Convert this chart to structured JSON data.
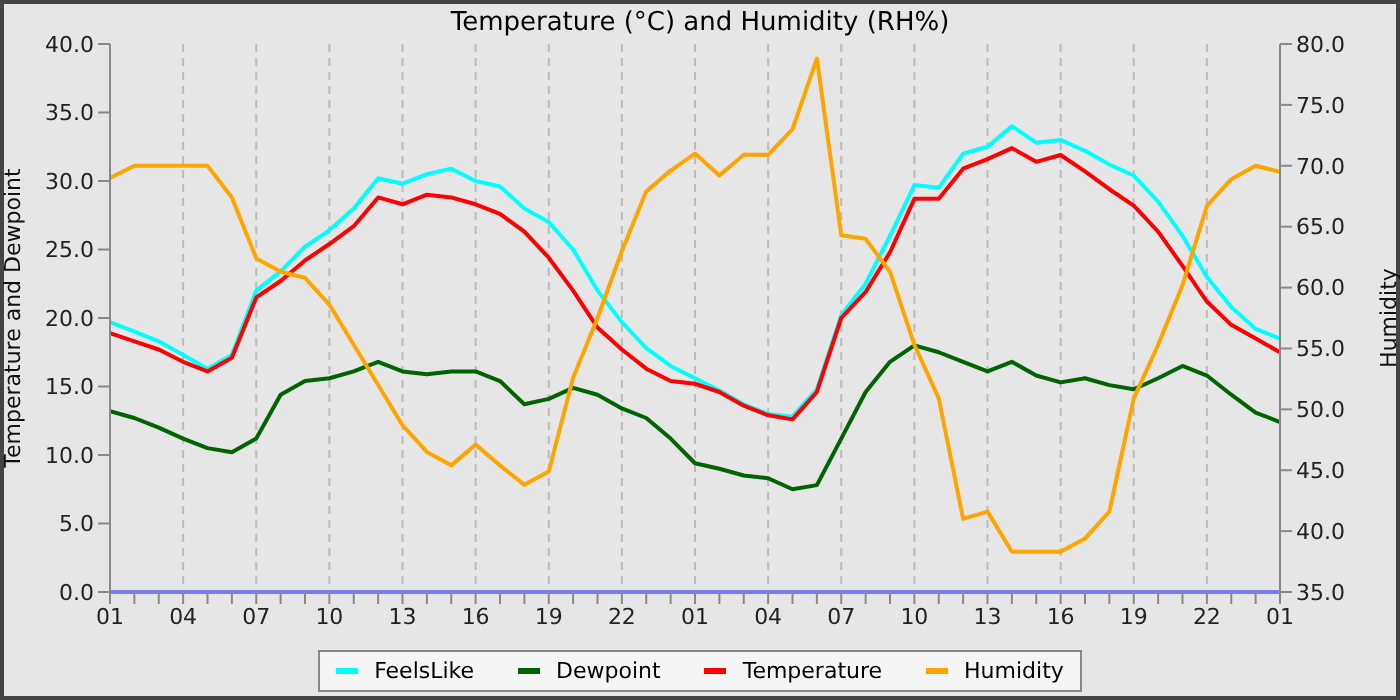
{
  "chart_data": {
    "type": "line",
    "title": "Temperature (°C) and Humidity (RH%)",
    "ylabel": "Temperature and Dewpoint",
    "y2label": "Humidity",
    "categories": [
      "01",
      null,
      null,
      "04",
      null,
      null,
      "07",
      null,
      null,
      "10",
      null,
      null,
      "13",
      null,
      null,
      "16",
      null,
      null,
      "19",
      null,
      null,
      "22",
      null,
      null,
      "01",
      null,
      null,
      "04",
      null,
      null,
      "07",
      null,
      null,
      "10",
      null,
      null,
      "13",
      null,
      null,
      "16",
      null,
      null,
      "19",
      null,
      null,
      "22",
      null,
      null,
      "01"
    ],
    "series": [
      {
        "name": "FeelsLike",
        "color": "#00ffff",
        "values": [
          19.7,
          19.0,
          18.3,
          17.3,
          16.3,
          17.3,
          22.0,
          23.4,
          25.2,
          26.4,
          28.0,
          30.2,
          29.8,
          30.5,
          30.9,
          30.0,
          29.6,
          28.0,
          27.0,
          25.0,
          22.0,
          19.7,
          17.8,
          16.5,
          15.6,
          14.7,
          13.7,
          13.0,
          12.8,
          14.8,
          20.2,
          22.5,
          26.0,
          29.7,
          29.5,
          32.0,
          32.5,
          34.0,
          32.8,
          33.0,
          32.2,
          31.2,
          30.4,
          28.5,
          26.0,
          23.0,
          20.8,
          19.2,
          18.5
        ]
      },
      {
        "name": "Dewpoint",
        "color": "#006400",
        "values": [
          13.2,
          12.7,
          12.0,
          11.2,
          10.5,
          10.2,
          11.2,
          14.4,
          15.4,
          15.6,
          16.1,
          16.8,
          16.1,
          15.9,
          16.1,
          16.1,
          15.4,
          13.7,
          14.1,
          14.9,
          14.4,
          13.4,
          12.7,
          11.2,
          9.4,
          9.0,
          8.5,
          8.3,
          7.5,
          7.8,
          11.2,
          14.6,
          16.8,
          18.0,
          17.5,
          16.8,
          16.1,
          16.8,
          15.8,
          15.3,
          15.6,
          15.1,
          14.8,
          15.6,
          16.5,
          15.8,
          14.4,
          13.1,
          12.4
        ]
      },
      {
        "name": "Temperature",
        "color": "#ff0000",
        "values": [
          18.9,
          18.3,
          17.7,
          16.8,
          16.1,
          17.1,
          21.5,
          22.7,
          24.2,
          25.4,
          26.7,
          28.8,
          28.3,
          29.0,
          28.8,
          28.3,
          27.6,
          26.3,
          24.4,
          22.0,
          19.3,
          17.7,
          16.3,
          15.4,
          15.2,
          14.6,
          13.6,
          12.9,
          12.6,
          14.6,
          20.0,
          21.9,
          24.8,
          28.7,
          28.7,
          30.9,
          31.6,
          32.4,
          31.4,
          31.9,
          30.7,
          29.4,
          28.2,
          26.3,
          23.8,
          21.2,
          19.5,
          18.5,
          17.5
        ]
      },
      {
        "name": "Humidity",
        "color": "#ffa500",
        "axis": "y2",
        "values": [
          69.0,
          70.0,
          70.0,
          70.0,
          70.0,
          67.4,
          62.4,
          61.3,
          60.8,
          58.6,
          55.3,
          52.0,
          48.7,
          46.5,
          45.4,
          47.1,
          45.4,
          43.8,
          44.9,
          52.6,
          57.5,
          63.0,
          67.9,
          69.6,
          71.0,
          69.2,
          70.9,
          70.9,
          73.0,
          78.8,
          64.3,
          64.0,
          61.3,
          55.3,
          50.9,
          41.0,
          41.6,
          38.3,
          38.3,
          38.3,
          39.4,
          41.6,
          50.9,
          55.3,
          60.2,
          66.7,
          68.9,
          70.0,
          69.5
        ]
      }
    ],
    "ylim": [
      0,
      40
    ],
    "yticks": [
      {
        "value": 0,
        "label": "0.0"
      },
      {
        "value": 5,
        "label": "5.0"
      },
      {
        "value": 10,
        "label": "10.0"
      },
      {
        "value": 15,
        "label": "15.0"
      },
      {
        "value": 20,
        "label": "20.0"
      },
      {
        "value": 25,
        "label": "25.0"
      },
      {
        "value": 30,
        "label": "30.0"
      },
      {
        "value": 35,
        "label": "35.0"
      },
      {
        "value": 40,
        "label": "40.0"
      }
    ],
    "y2lim": [
      35,
      80
    ],
    "y2ticks": [
      {
        "value": 35,
        "label": "35.0"
      },
      {
        "value": 40,
        "label": "40.0"
      },
      {
        "value": 45,
        "label": "45.0"
      },
      {
        "value": 50,
        "label": "50.0"
      },
      {
        "value": 55,
        "label": "55.0"
      },
      {
        "value": 60,
        "label": "60.0"
      },
      {
        "value": 65,
        "label": "65.0"
      },
      {
        "value": 70,
        "label": "70.0"
      },
      {
        "value": 75,
        "label": "75.0"
      },
      {
        "value": 80,
        "label": "80.0"
      }
    ],
    "grid": true,
    "legend": "bottom"
  }
}
